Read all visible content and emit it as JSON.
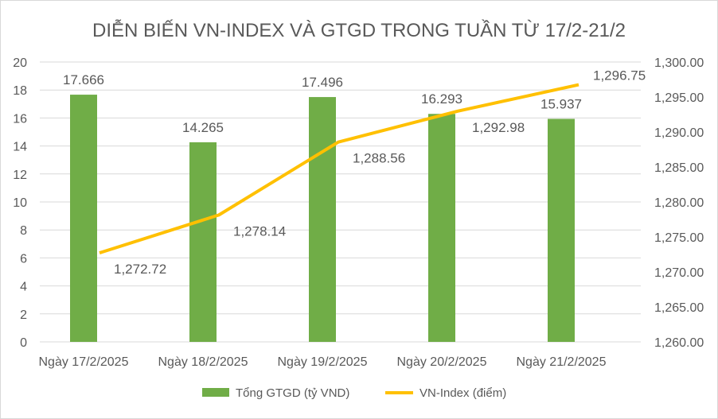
{
  "chart_data": {
    "type": "bar+line",
    "title": "DIỄN BIẾN VN-INDEX VÀ GTGD TRONG TUẦN TỪ 17/2-21/2",
    "categories": [
      "Ngày 17/2/2025",
      "Ngày 18/2/2025",
      "Ngày 19/2/2025",
      "Ngày 20/2/2025",
      "Ngày 21/2/2025"
    ],
    "series": [
      {
        "name": "Tổng GTGD (tỷ VND)",
        "type": "bar",
        "axis": "left",
        "color": "#70ad47",
        "values": [
          17.666,
          14.265,
          17.496,
          16.293,
          15.937
        ],
        "labels": [
          "17.666",
          "14.265",
          "17.496",
          "16.293",
          "15.937"
        ]
      },
      {
        "name": "VN-Index (điểm)",
        "type": "line",
        "axis": "right",
        "color": "#ffc000",
        "values": [
          1272.72,
          1278.14,
          1288.56,
          1292.98,
          1296.75
        ],
        "labels": [
          "1,272.72",
          "1,278.14",
          "1,288.56",
          "1,292.98",
          "1,296.75"
        ]
      }
    ],
    "y_left": {
      "range": [
        0,
        20
      ],
      "ticks": [
        "0",
        "2",
        "4",
        "6",
        "8",
        "10",
        "12",
        "14",
        "16",
        "18",
        "20"
      ]
    },
    "y_right": {
      "range": [
        1260,
        1300
      ],
      "ticks": [
        "1,260.00",
        "1,265.00",
        "1,270.00",
        "1,275.00",
        "1,280.00",
        "1,285.00",
        "1,290.00",
        "1,295.00",
        "1,300.00"
      ]
    },
    "grid": true,
    "legend": "bottom"
  }
}
